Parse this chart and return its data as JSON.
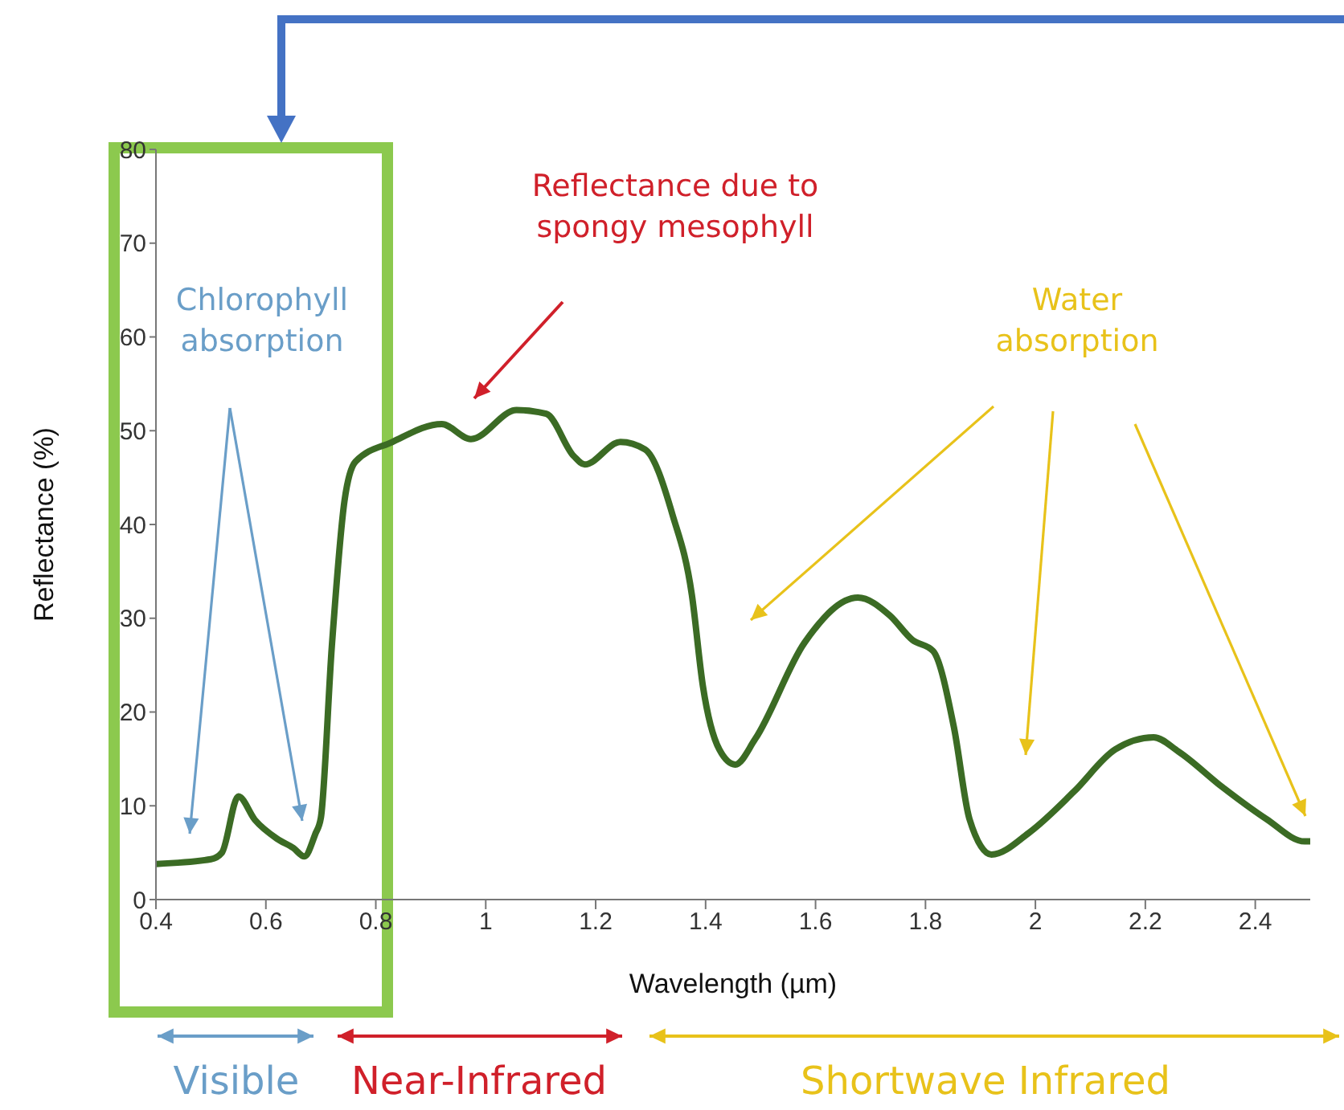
{
  "chart_data": {
    "type": "line",
    "xlabel": "Wavelength (µm)",
    "ylabel": "Reflectance (%)",
    "x": [
      0.4,
      0.5,
      0.52,
      0.55,
      0.58,
      0.62,
      0.65,
      0.67,
      0.69,
      0.7,
      0.72,
      0.743,
      0.763,
      0.83,
      0.92,
      0.973,
      1.056,
      1.11,
      1.16,
      1.18,
      1.245,
      1.29,
      1.34,
      1.375,
      1.395,
      1.425,
      1.454,
      1.49,
      1.58,
      1.677,
      1.735,
      1.776,
      1.814,
      1.852,
      1.88,
      1.92,
      1.99,
      2.07,
      2.145,
      2.215,
      2.26,
      2.34,
      2.42,
      2.49,
      2.5
    ],
    "series": [
      {
        "color": "#3b6b24",
        "values": [
          3.8,
          4.3,
          5,
          11,
          8.5,
          6.5,
          5.5,
          4.6,
          7,
          8.7,
          27,
          42.5,
          46.7,
          48.8,
          50.7,
          49.1,
          52.2,
          51.8,
          47.3,
          46.4,
          48.8,
          48,
          41,
          32.5,
          22.8,
          16,
          14.4,
          17.1,
          27.4,
          32.2,
          30.3,
          27.7,
          26.5,
          18.3,
          8.6,
          4.8,
          7.2,
          11.5,
          16,
          17.3,
          15.8,
          12,
          8.6,
          6.2,
          6.2
        ]
      }
    ],
    "xlim": [
      0.4,
      2.5
    ],
    "xticks": [
      0.4,
      0.6,
      0.8,
      1,
      1.2,
      1.4,
      1.6,
      1.8,
      2,
      2.2,
      2.4
    ],
    "ylim": [
      0,
      80
    ],
    "yticks": [
      0,
      10,
      20,
      30,
      40,
      50,
      60,
      70,
      80
    ],
    "grid": false,
    "legend": false,
    "marker": "none",
    "line_style": "solid",
    "annotations": [
      "Chlorophyll absorption",
      "Reflectance due to spongy mesophyll",
      "Water absorption",
      "Visible",
      "Near-Infrared",
      "Shortwave Infrared"
    ]
  }
}
